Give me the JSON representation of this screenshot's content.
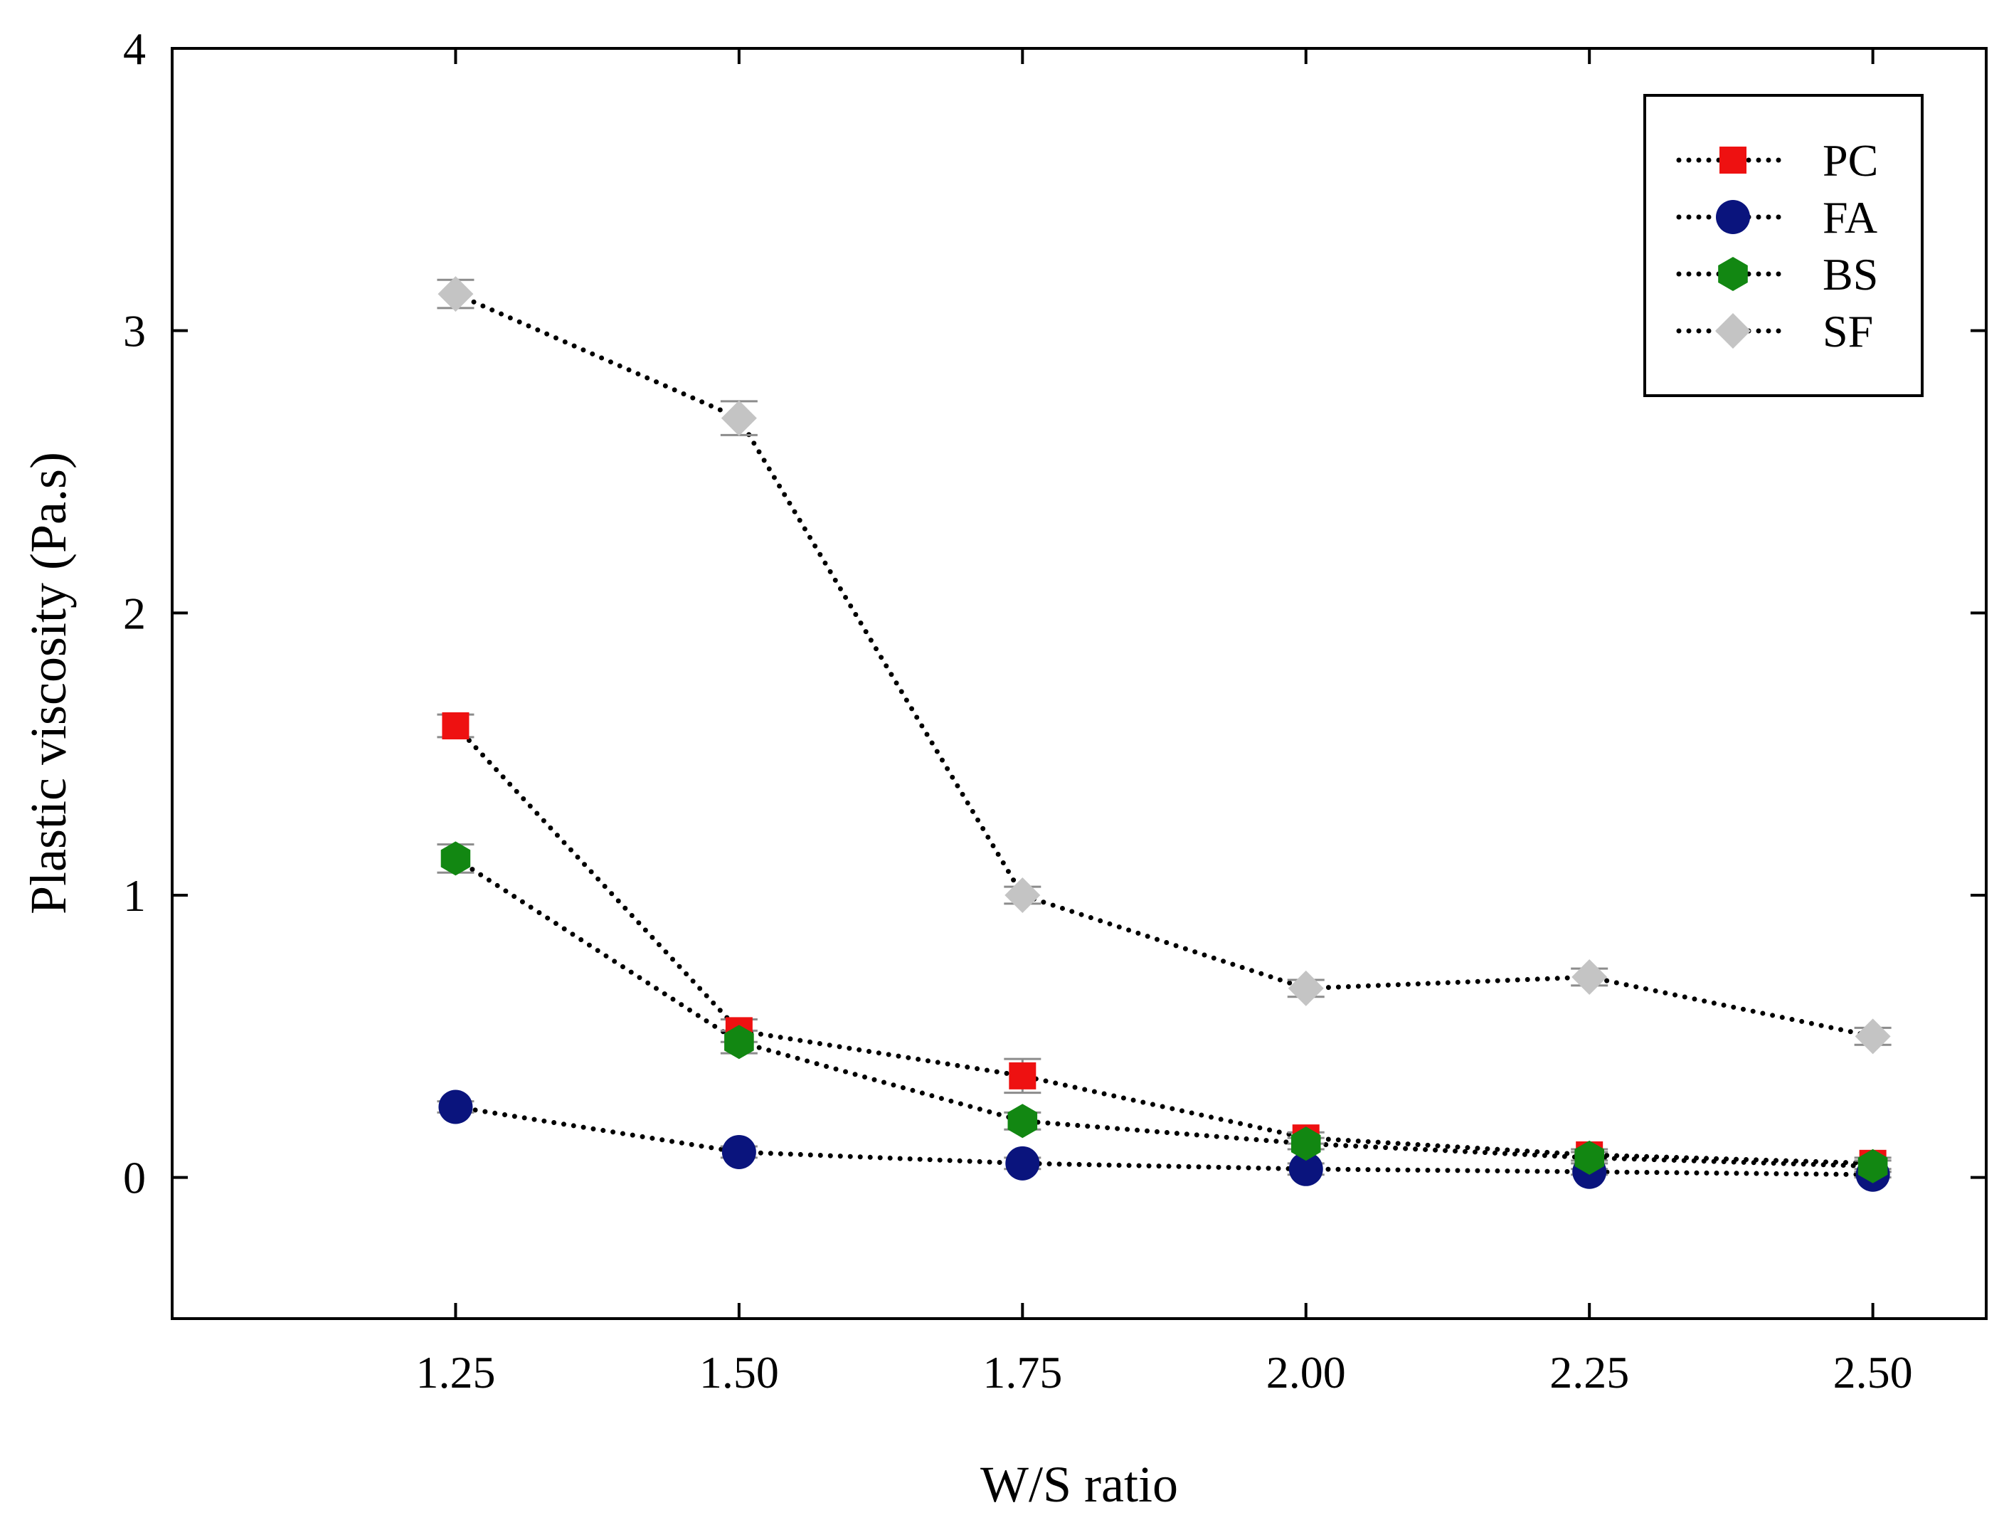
{
  "chart_data": {
    "type": "line",
    "title": "",
    "xlabel": "W/S ratio",
    "ylabel": "Plastic viscosity (Pa.s)",
    "xlim": [
      1.0,
      2.6
    ],
    "ylim": [
      -0.5,
      4
    ],
    "x": [
      1.25,
      1.5,
      1.75,
      2.0,
      2.25,
      2.5
    ],
    "x_tick_values": [
      1.25,
      1.5,
      1.75,
      2.0,
      2.25,
      2.5
    ],
    "x_tick_labels": [
      "1.25",
      "1.50",
      "1.75",
      "2.00",
      "2.25",
      "2.50"
    ],
    "y_tick_values": [
      0,
      1,
      2,
      3,
      4
    ],
    "y_tick_labels": [
      "0",
      "1",
      "2",
      "3",
      "4"
    ],
    "grid": false,
    "legend_position": "top-right",
    "series": [
      {
        "name": "PC",
        "marker": "square",
        "color": "#ee1111",
        "values": [
          1.6,
          0.52,
          0.36,
          0.14,
          0.08,
          0.05
        ],
        "errors": [
          0.04,
          0.04,
          0.06,
          0.02,
          0.02,
          0.02
        ]
      },
      {
        "name": "FA",
        "marker": "circle",
        "color": "#0a147d",
        "values": [
          0.25,
          0.09,
          0.05,
          0.03,
          0.02,
          0.01
        ],
        "errors": [
          0.02,
          0.02,
          0.02,
          0.02,
          0.01,
          0.01
        ]
      },
      {
        "name": "BS",
        "marker": "hexagon",
        "color": "#128712",
        "values": [
          1.13,
          0.48,
          0.2,
          0.12,
          0.07,
          0.04
        ],
        "errors": [
          0.05,
          0.04,
          0.03,
          0.02,
          0.02,
          0.02
        ]
      },
      {
        "name": "SF",
        "marker": "diamond",
        "color": "#c4c4c4",
        "values": [
          3.13,
          2.69,
          1.0,
          0.67,
          0.71,
          0.5
        ],
        "errors": [
          0.05,
          0.06,
          0.03,
          0.03,
          0.03,
          0.03
        ]
      }
    ]
  }
}
